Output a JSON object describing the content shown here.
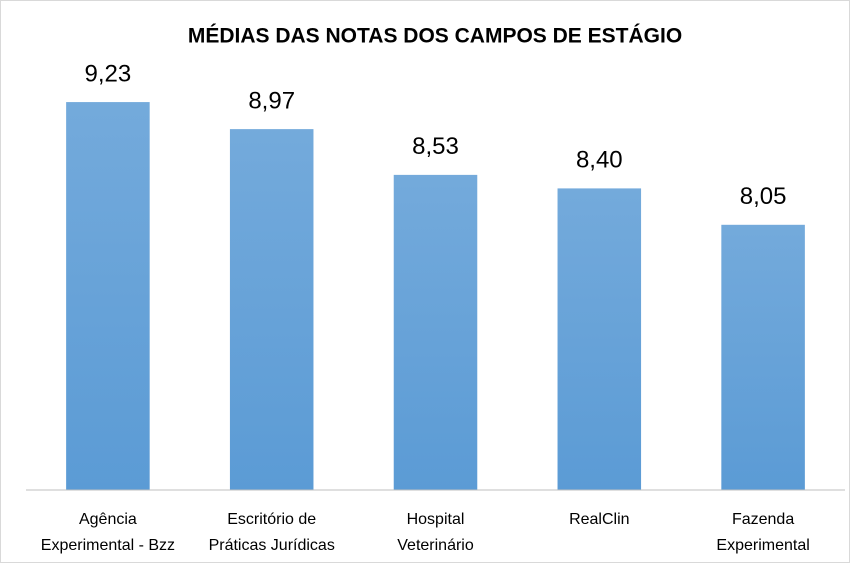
{
  "chart_data": {
    "type": "bar",
    "title": "MÉDIAS DAS NOTAS DOS CAMPOS DE ESTÁGIO",
    "categories": [
      "Agência\nExperimental - Bzz",
      "Escritório de\nPráticas Jurídicas",
      "Hospital\nVeterinário",
      "RealClin",
      "Fazenda\nExperimental"
    ],
    "values": [
      9.23,
      8.97,
      8.53,
      8.4,
      8.05
    ],
    "value_labels": [
      "9,23",
      "8,97",
      "8,53",
      "8,40",
      "8,05"
    ],
    "color": "#5b9bd5",
    "ylim": [
      5.5,
      9.5
    ]
  }
}
